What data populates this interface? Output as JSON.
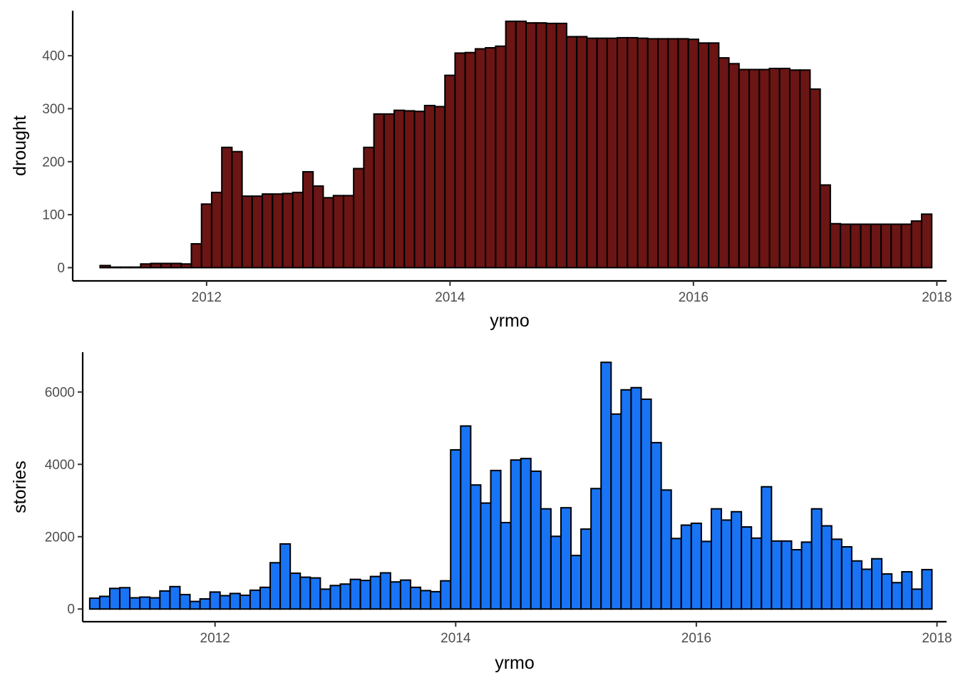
{
  "chart_data": [
    {
      "type": "bar",
      "name": "drought-panel",
      "xlabel": "yrmo",
      "ylabel": "drought",
      "fill": "#6B1515",
      "stroke": "#000000",
      "xlim": [
        2010.9,
        2018.08
      ],
      "ylim": [
        -25,
        485
      ],
      "xticks": [
        2012,
        2014,
        2016,
        2018
      ],
      "yticks": [
        0,
        100,
        200,
        300,
        400
      ],
      "x_start": 2011.0,
      "x_step": 0.08333,
      "values": [
        0,
        0,
        4,
        1,
        1,
        1,
        7,
        8,
        8,
        8,
        7,
        45,
        120,
        142,
        227,
        219,
        135,
        135,
        139,
        139,
        140,
        142,
        181,
        154,
        132,
        136,
        136,
        187,
        227,
        290,
        290,
        297,
        296,
        295,
        306,
        304,
        363,
        405,
        406,
        413,
        415,
        418,
        465,
        465,
        462,
        462,
        461,
        461,
        436,
        436,
        433,
        433,
        433,
        434,
        434,
        433,
        432,
        432,
        432,
        432,
        431,
        424,
        424,
        396,
        385,
        374,
        374,
        374,
        376,
        376,
        373,
        373,
        337,
        156,
        83,
        82,
        82,
        82,
        82,
        82,
        82,
        82,
        88,
        101
      ]
    },
    {
      "type": "bar",
      "name": "stories-panel",
      "xlabel": "yrmo",
      "ylabel": "stories",
      "fill": "#1874F5",
      "stroke": "#000000",
      "xlim": [
        2010.9,
        2018.08
      ],
      "ylim": [
        -350,
        7100
      ],
      "xticks": [
        2012,
        2014,
        2016,
        2018
      ],
      "yticks": [
        0,
        2000,
        4000,
        6000
      ],
      "x_start": 2011.0,
      "x_step": 0.08333,
      "values": [
        300,
        350,
        570,
        590,
        310,
        330,
        310,
        500,
        620,
        400,
        210,
        280,
        470,
        370,
        430,
        380,
        520,
        600,
        1280,
        1800,
        990,
        880,
        860,
        550,
        650,
        690,
        820,
        790,
        900,
        1000,
        750,
        800,
        600,
        510,
        480,
        780,
        4400,
        5060,
        3430,
        2930,
        3830,
        2390,
        4120,
        4160,
        3810,
        2770,
        2010,
        2800,
        1480,
        2210,
        3330,
        6820,
        5390,
        6060,
        6120,
        5800,
        4600,
        3290,
        1950,
        2320,
        2370,
        1870,
        2770,
        2460,
        2690,
        2270,
        1960,
        3380,
        1880,
        1880,
        1640,
        1850,
        2770,
        2300,
        1930,
        1720,
        1330,
        1100,
        1390,
        970,
        730,
        1030,
        550,
        1090
      ]
    }
  ]
}
